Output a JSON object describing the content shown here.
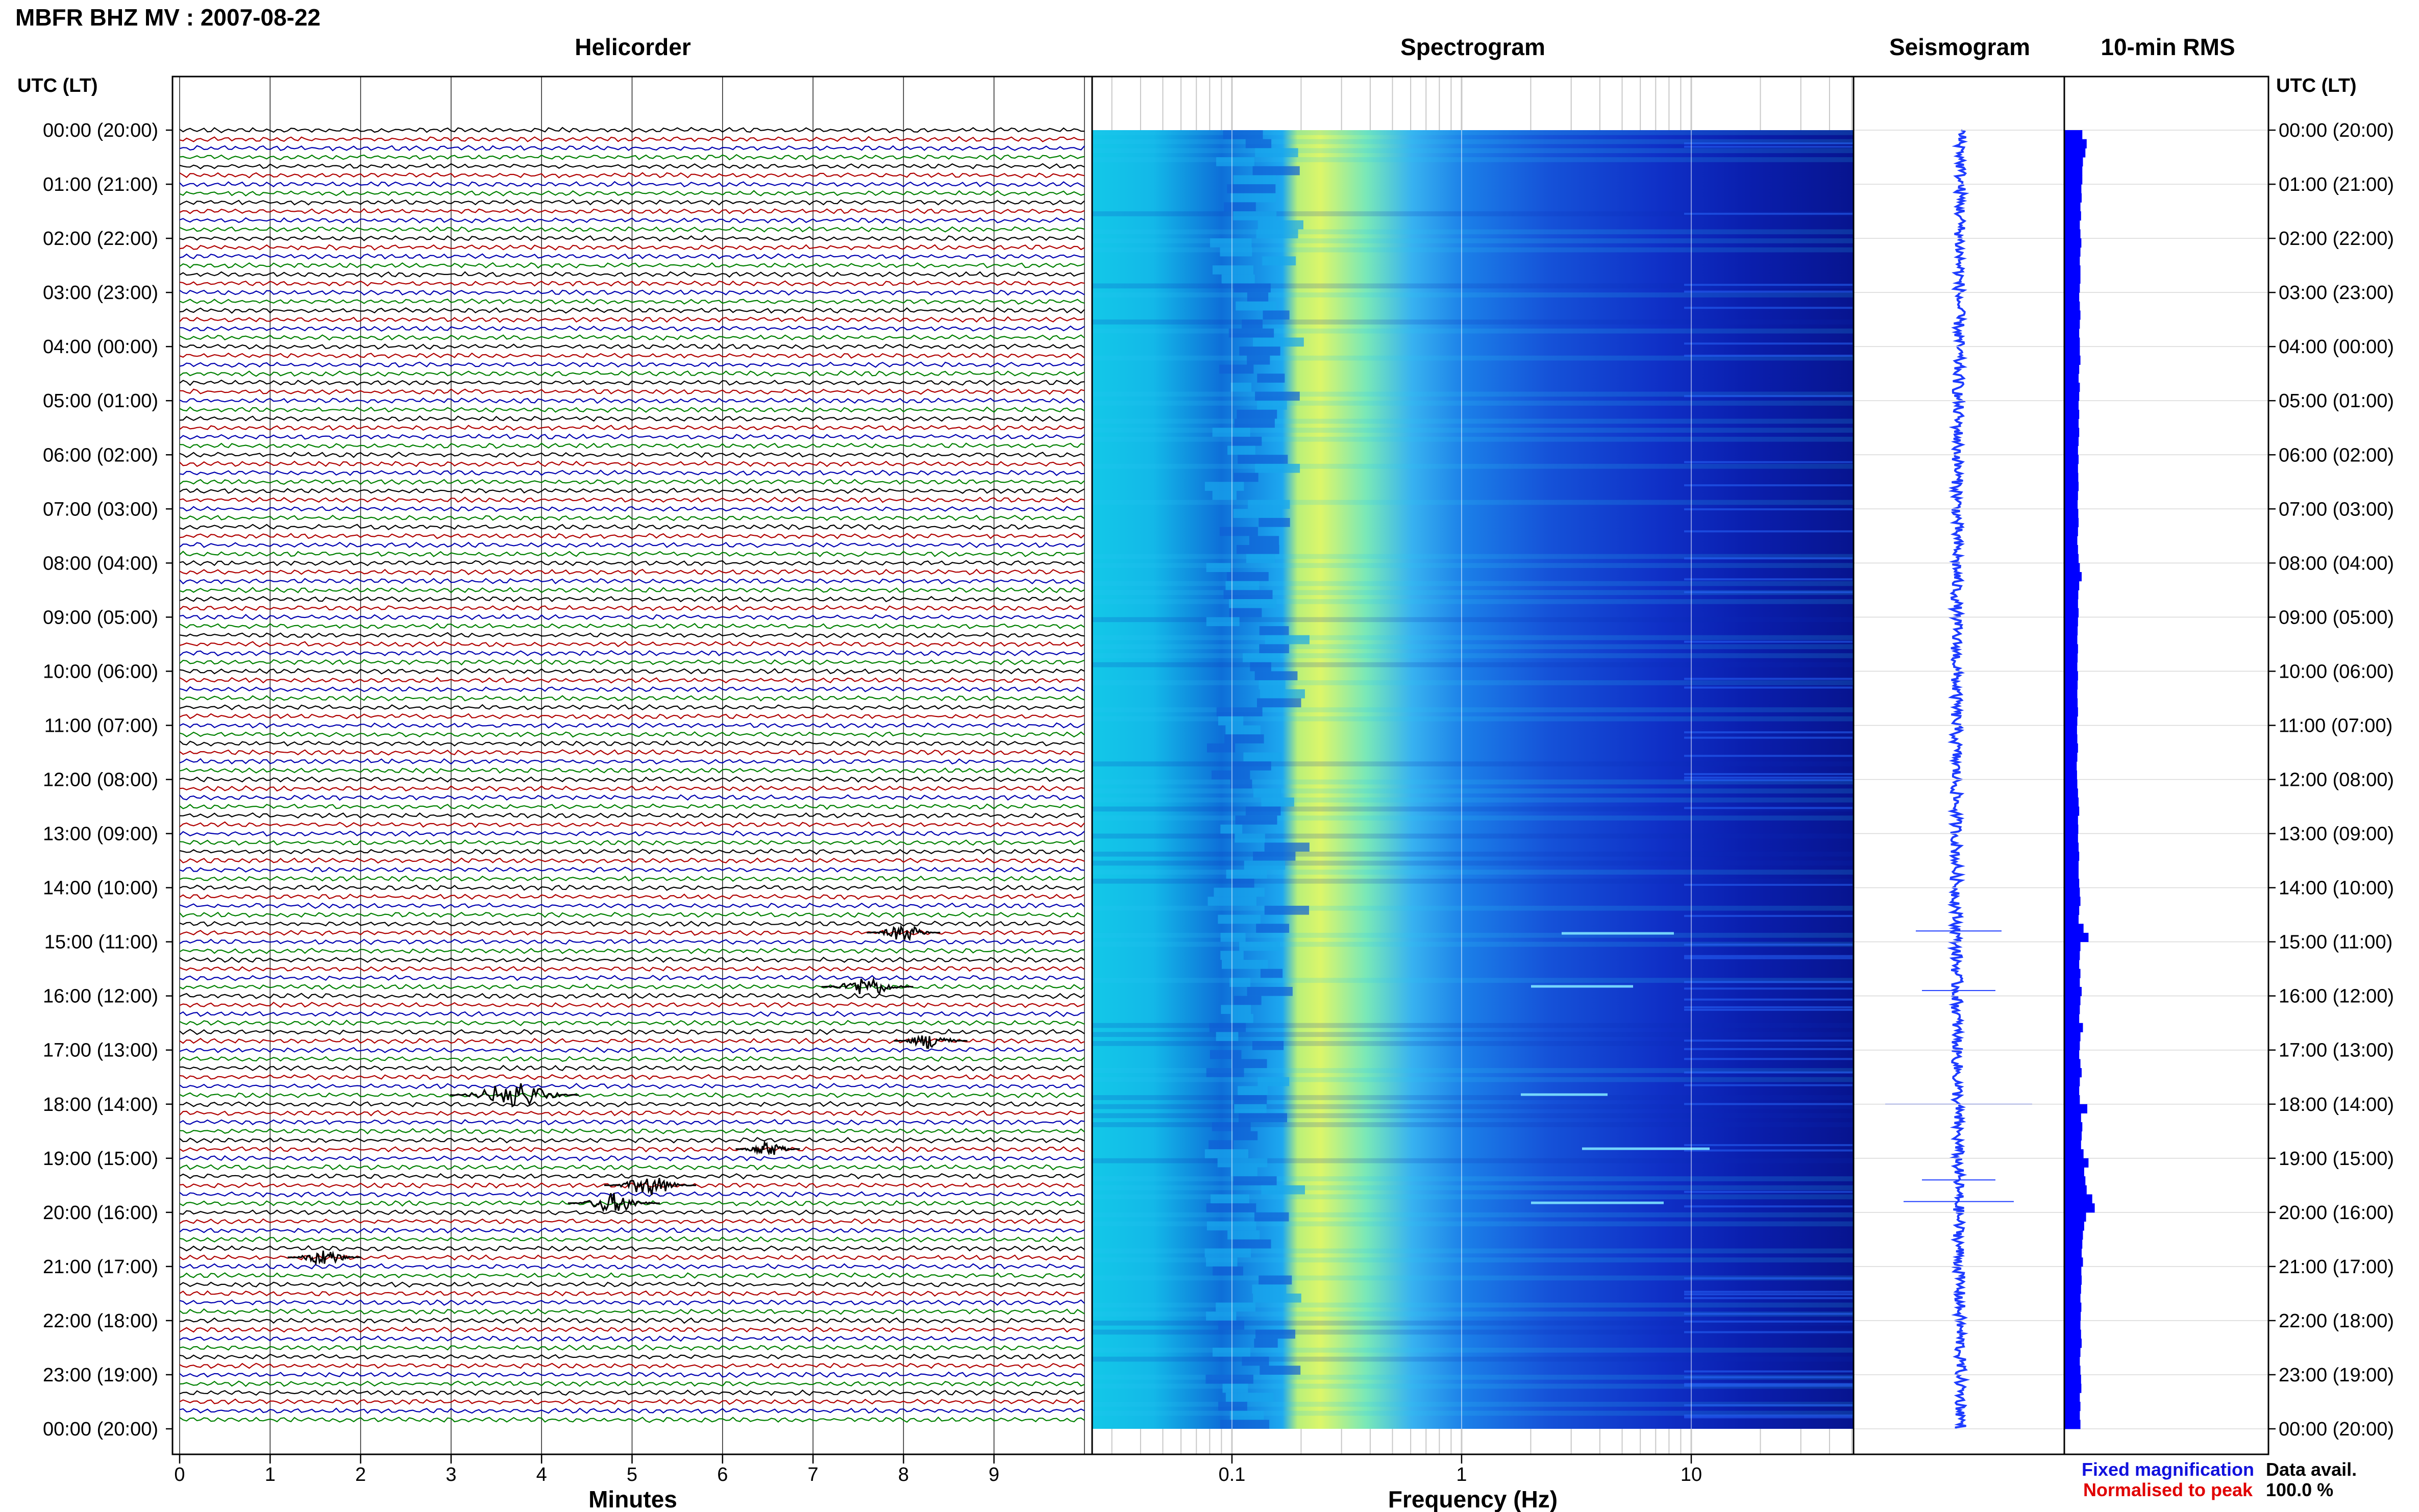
{
  "title": "MBFR BHZ MV : 2007-08-22",
  "panels": {
    "helicorder": "Helicorder",
    "spectrogram": "Spectrogram",
    "seismogram": "Seismogram",
    "rms": "10-min RMS"
  },
  "time_axis_title": "UTC (LT)",
  "time_labels": [
    "00:00 (20:00)",
    "01:00 (21:00)",
    "02:00 (22:00)",
    "03:00 (23:00)",
    "04:00 (00:00)",
    "05:00 (01:00)",
    "06:00 (02:00)",
    "07:00 (03:00)",
    "08:00 (04:00)",
    "09:00 (05:00)",
    "10:00 (06:00)",
    "11:00 (07:00)",
    "12:00 (08:00)",
    "13:00 (09:00)",
    "14:00 (10:00)",
    "15:00 (11:00)",
    "16:00 (12:00)",
    "17:00 (13:00)",
    "18:00 (14:00)",
    "19:00 (15:00)",
    "20:00 (16:00)",
    "21:00 (17:00)",
    "22:00 (18:00)",
    "23:00 (19:00)",
    "00:00 (20:00)"
  ],
  "minutes_axis": {
    "title": "Minutes",
    "ticks": [
      "0",
      "1",
      "2",
      "3",
      "4",
      "5",
      "6",
      "7",
      "8",
      "9"
    ]
  },
  "frequency_axis": {
    "title": "Frequency (Hz)",
    "ticks": [
      "0.1",
      "1",
      "10"
    ]
  },
  "legend": {
    "fixed": "Fixed magnification",
    "normalised": "Normalised to peak"
  },
  "data_avail": {
    "label": "Data avail.",
    "value": "100.0 %"
  },
  "colors": {
    "trace_cycle": [
      "#000000",
      "#b00000",
      "#0000b0",
      "#008000"
    ],
    "legend_fixed": "#1111dd",
    "legend_normalised": "#e00000",
    "rms_bar": "#0000ff",
    "seismogram": "#1e3cff"
  },
  "chart_data": [
    {
      "type": "line",
      "title": "Helicorder",
      "xlabel": "Minutes",
      "xlim": [
        0,
        10
      ],
      "ylim_hours": [
        0,
        24
      ],
      "lines_per_hour": 6,
      "trace_colors_cycle": [
        "black",
        "red",
        "blue",
        "green"
      ],
      "events": [
        {
          "hour": 14.83,
          "minute": 8.0,
          "amp": 0.8
        },
        {
          "hour": 15.83,
          "minute": 7.6,
          "amp": 1.0
        },
        {
          "hour": 16.83,
          "minute": 8.3,
          "amp": 0.8
        },
        {
          "hour": 17.83,
          "minute": 3.7,
          "amp": 1.4
        },
        {
          "hour": 18.83,
          "minute": 6.5,
          "amp": 0.7
        },
        {
          "hour": 19.5,
          "minute": 5.2,
          "amp": 1.0
        },
        {
          "hour": 19.83,
          "minute": 4.8,
          "amp": 1.0
        },
        {
          "hour": 20.83,
          "minute": 1.6,
          "amp": 0.8
        }
      ]
    },
    {
      "type": "heatmap",
      "title": "Spectrogram",
      "xlabel": "Frequency (Hz)",
      "x_scale": "log",
      "xlim": [
        0.02,
        50
      ],
      "ylim_hours": [
        0,
        24
      ],
      "peak_frequency_hz": 0.25,
      "colormap": [
        "#00008b",
        "#0000ff",
        "#0080ff",
        "#00d0ff",
        "#40ffb0",
        "#d0ff40"
      ]
    },
    {
      "type": "line",
      "title": "Seismogram",
      "ylim_hours": [
        0,
        24
      ],
      "spikes": [
        {
          "hour": 14.8,
          "amp": 0.35
        },
        {
          "hour": 15.9,
          "amp": 0.3
        },
        {
          "hour": 18.0,
          "amp": 0.6
        },
        {
          "hour": 19.4,
          "amp": 0.3
        },
        {
          "hour": 19.8,
          "amp": 0.45
        }
      ]
    },
    {
      "type": "bar",
      "title": "10-min RMS",
      "ylim_hours": [
        0,
        24
      ],
      "values": [
        0.58,
        0.72,
        0.68,
        0.6,
        0.58,
        0.58,
        0.55,
        0.56,
        0.52,
        0.54,
        0.5,
        0.52,
        0.55,
        0.52,
        0.5,
        0.52,
        0.52,
        0.5,
        0.48,
        0.5,
        0.52,
        0.5,
        0.48,
        0.5,
        0.5,
        0.52,
        0.48,
        0.46,
        0.5,
        0.48,
        0.46,
        0.48,
        0.46,
        0.48,
        0.46,
        0.44,
        0.46,
        0.44,
        0.45,
        0.46,
        0.44,
        0.43,
        0.45,
        0.46,
        0.44,
        0.42,
        0.44,
        0.46,
        0.5,
        0.56,
        0.48,
        0.45,
        0.44,
        0.46,
        0.44,
        0.43,
        0.42,
        0.44,
        0.43,
        0.42,
        0.44,
        0.43,
        0.42,
        0.43,
        0.44,
        0.42,
        0.41,
        0.42,
        0.44,
        0.42,
        0.4,
        0.41,
        0.42,
        0.44,
        0.46,
        0.48,
        0.44,
        0.45,
        0.44,
        0.46,
        0.48,
        0.46,
        0.46,
        0.48,
        0.5,
        0.52,
        0.48,
        0.46,
        0.62,
        0.78,
        0.52,
        0.5,
        0.48,
        0.52,
        0.5,
        0.56,
        0.52,
        0.5,
        0.48,
        0.6,
        0.52,
        0.5,
        0.48,
        0.52,
        0.56,
        0.5,
        0.48,
        0.5,
        0.74,
        0.54,
        0.58,
        0.56,
        0.54,
        0.62,
        0.78,
        0.64,
        0.68,
        0.72,
        0.9,
        0.98,
        0.7,
        0.64,
        0.6,
        0.58,
        0.56,
        0.6,
        0.55,
        0.56,
        0.54,
        0.52,
        0.55,
        0.53,
        0.52,
        0.54,
        0.56,
        0.52,
        0.5,
        0.52,
        0.54,
        0.55,
        0.5,
        0.52,
        0.5,
        0.52
      ]
    }
  ]
}
